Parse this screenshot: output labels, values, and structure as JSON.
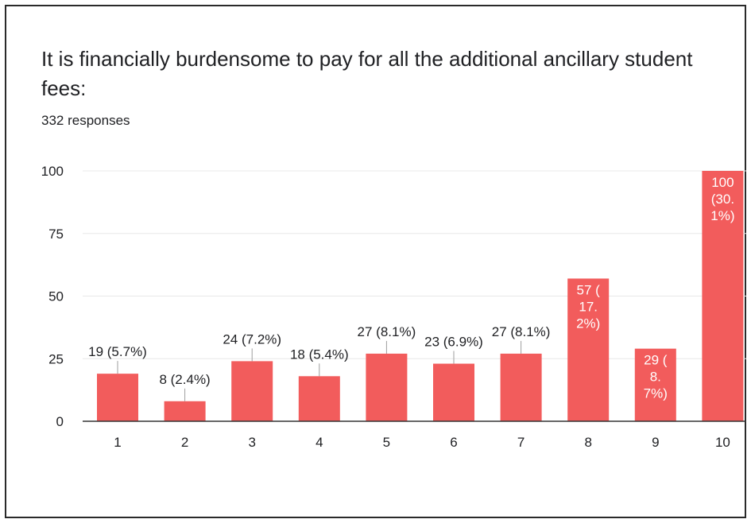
{
  "title": "It is financially burdensome to pay for all the additional ancillary student fees:",
  "subtitle": "332 responses",
  "colors": {
    "bar": "#f25c5c",
    "grid": "#e8e8e8",
    "axis": "#333333",
    "text": "#202124"
  },
  "chart_data": {
    "type": "bar",
    "title": "It is financially burdensome to pay for all the additional ancillary student fees:",
    "xlabel": "",
    "ylabel": "",
    "categories": [
      "1",
      "2",
      "3",
      "4",
      "5",
      "6",
      "7",
      "8",
      "9",
      "10"
    ],
    "values": [
      19,
      8,
      24,
      18,
      27,
      23,
      27,
      57,
      29,
      100
    ],
    "data_labels": [
      [
        "19 (5.7%)"
      ],
      [
        "8 (2.4%)"
      ],
      [
        "24 (7.2%)"
      ],
      [
        "18 (5.4%)"
      ],
      [
        "27 (8.1%)"
      ],
      [
        "23 (6.9%)"
      ],
      [
        "27 (8.1%)"
      ],
      [
        "57 (",
        "17.",
        "2%)"
      ],
      [
        "29 (",
        "8.",
        "7%)"
      ],
      [
        "100",
        "(30.",
        "1%)"
      ]
    ],
    "yticks": [
      0,
      25,
      50,
      75,
      100
    ],
    "ylim": [
      0,
      100
    ],
    "grid": true,
    "legend": "none"
  }
}
